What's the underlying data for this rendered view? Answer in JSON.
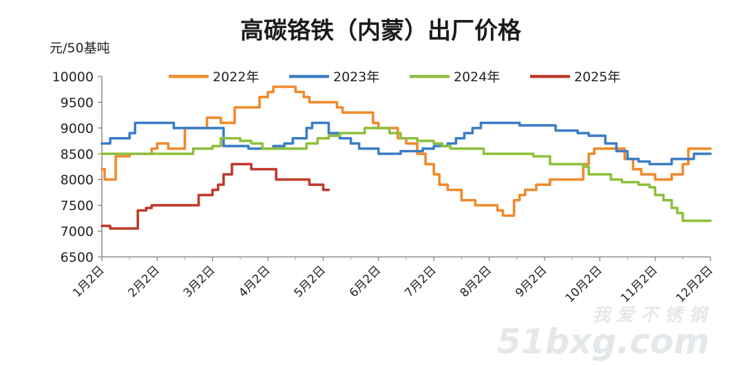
{
  "chart_data": {
    "type": "line",
    "title": "高碳铬铁（内蒙）出厂价格",
    "ylabel": "元/50基吨",
    "ylim": [
      6500,
      10000
    ],
    "yticks": [
      6500,
      7000,
      7500,
      8000,
      8500,
      9000,
      9500,
      10000
    ],
    "categories": [
      "1月2日",
      "2月2日",
      "3月2日",
      "4月2日",
      "5月2日",
      "6月2日",
      "7月2日",
      "8月2日",
      "9月2日",
      "10月2日",
      "11月2日",
      "12月2日"
    ],
    "legend_position": "top",
    "grid": false,
    "series": [
      {
        "name": "2022年",
        "color": "#f08a2b",
        "points": [
          [
            1,
            8200
          ],
          [
            1.1,
            8000
          ],
          [
            1.4,
            8000
          ],
          [
            1.5,
            8450
          ],
          [
            1.7,
            8450
          ],
          [
            2.0,
            8500
          ],
          [
            2.6,
            8500
          ],
          [
            2.8,
            8600
          ],
          [
            3.0,
            8700
          ],
          [
            3.3,
            8700
          ],
          [
            3.4,
            8600
          ],
          [
            3.8,
            8600
          ],
          [
            4.0,
            9000
          ],
          [
            4.2,
            9000
          ],
          [
            4.6,
            9000
          ],
          [
            4.8,
            9200
          ],
          [
            5.0,
            9200
          ],
          [
            5.3,
            9100
          ],
          [
            5.6,
            9100
          ],
          [
            5.8,
            9400
          ],
          [
            6.0,
            9400
          ],
          [
            6.5,
            9400
          ],
          [
            6.7,
            9600
          ],
          [
            7.0,
            9700
          ],
          [
            7.2,
            9800
          ],
          [
            7.8,
            9800
          ],
          [
            8.0,
            9700
          ],
          [
            8.3,
            9600
          ],
          [
            8.5,
            9500
          ],
          [
            9.0,
            9500
          ],
          [
            9.3,
            9500
          ],
          [
            9.5,
            9400
          ],
          [
            9.7,
            9300
          ],
          [
            10.2,
            9300
          ],
          [
            10.6,
            9300
          ],
          [
            10.8,
            9100
          ],
          [
            11.0,
            9000
          ],
          [
            11.5,
            9000
          ],
          [
            11.7,
            8800
          ],
          [
            12.0,
            8700
          ],
          [
            12.4,
            8500
          ],
          [
            12.7,
            8300
          ],
          [
            13.0,
            8100
          ],
          [
            13.2,
            7900
          ],
          [
            13.5,
            7800
          ],
          [
            13.8,
            7800
          ],
          [
            14.0,
            7600
          ],
          [
            14.3,
            7600
          ],
          [
            14.5,
            7500
          ],
          [
            15.0,
            7500
          ],
          [
            15.3,
            7400
          ],
          [
            15.5,
            7300
          ],
          [
            15.7,
            7300
          ],
          [
            15.9,
            7600
          ],
          [
            16.1,
            7700
          ],
          [
            16.3,
            7800
          ],
          [
            16.5,
            7800
          ],
          [
            16.7,
            7900
          ],
          [
            17.0,
            7900
          ],
          [
            17.2,
            8000
          ],
          [
            17.6,
            8000
          ],
          [
            18.2,
            8000
          ],
          [
            18.4,
            8300
          ],
          [
            18.6,
            8500
          ],
          [
            18.8,
            8600
          ],
          [
            19.2,
            8600
          ],
          [
            19.6,
            8600
          ],
          [
            19.9,
            8400
          ],
          [
            20.2,
            8200
          ],
          [
            20.5,
            8100
          ],
          [
            20.8,
            8100
          ],
          [
            21.0,
            8000
          ],
          [
            21.4,
            8000
          ],
          [
            21.6,
            8100
          ],
          [
            21.8,
            8100
          ],
          [
            22.0,
            8300
          ],
          [
            22.2,
            8600
          ],
          [
            22.6,
            8600
          ],
          [
            23.0,
            8600
          ]
        ]
      },
      {
        "name": "2023年",
        "color": "#3b7dc4",
        "points": [
          [
            1,
            8700
          ],
          [
            1.2,
            8700
          ],
          [
            1.3,
            8800
          ],
          [
            1.8,
            8800
          ],
          [
            2.0,
            8900
          ],
          [
            2.2,
            9100
          ],
          [
            2.6,
            9100
          ],
          [
            3.4,
            9100
          ],
          [
            3.6,
            9000
          ],
          [
            4.0,
            9000
          ],
          [
            4.5,
            9000
          ],
          [
            5.2,
            9000
          ],
          [
            5.4,
            8650
          ],
          [
            6.3,
            8600
          ],
          [
            6.8,
            8600
          ],
          [
            7.2,
            8650
          ],
          [
            7.6,
            8700
          ],
          [
            7.9,
            8800
          ],
          [
            8.2,
            8800
          ],
          [
            8.4,
            9000
          ],
          [
            8.6,
            9100
          ],
          [
            8.9,
            9100
          ],
          [
            9.2,
            8900
          ],
          [
            9.6,
            8800
          ],
          [
            10.0,
            8700
          ],
          [
            10.3,
            8600
          ],
          [
            10.8,
            8600
          ],
          [
            11.0,
            8500
          ],
          [
            11.6,
            8500
          ],
          [
            11.8,
            8550
          ],
          [
            12.4,
            8550
          ],
          [
            12.6,
            8600
          ],
          [
            13.0,
            8650
          ],
          [
            13.5,
            8700
          ],
          [
            13.8,
            8800
          ],
          [
            14.1,
            8900
          ],
          [
            14.4,
            9000
          ],
          [
            14.7,
            9100
          ],
          [
            15.2,
            9100
          ],
          [
            15.8,
            9100
          ],
          [
            16.1,
            9050
          ],
          [
            16.5,
            9050
          ],
          [
            17.0,
            9050
          ],
          [
            17.4,
            8950
          ],
          [
            17.8,
            8950
          ],
          [
            18.2,
            8900
          ],
          [
            18.6,
            8850
          ],
          [
            19.2,
            8700
          ],
          [
            19.6,
            8550
          ],
          [
            20.0,
            8400
          ],
          [
            20.4,
            8350
          ],
          [
            20.8,
            8300
          ],
          [
            21.4,
            8300
          ],
          [
            21.6,
            8400
          ],
          [
            22.0,
            8400
          ],
          [
            22.4,
            8500
          ],
          [
            23.0,
            8500
          ]
        ]
      },
      {
        "name": "2024年",
        "color": "#8dbf3c",
        "points": [
          [
            1,
            8500
          ],
          [
            2.5,
            8500
          ],
          [
            4.0,
            8500
          ],
          [
            4.3,
            8600
          ],
          [
            5.0,
            8650
          ],
          [
            5.3,
            8800
          ],
          [
            5.8,
            8800
          ],
          [
            6.0,
            8750
          ],
          [
            6.4,
            8700
          ],
          [
            6.8,
            8600
          ],
          [
            7.5,
            8600
          ],
          [
            8.4,
            8700
          ],
          [
            8.8,
            8800
          ],
          [
            9.2,
            8850
          ],
          [
            9.6,
            8900
          ],
          [
            10.3,
            8900
          ],
          [
            10.5,
            9000
          ],
          [
            11.0,
            9000
          ],
          [
            11.4,
            8900
          ],
          [
            11.8,
            8800
          ],
          [
            12.4,
            8750
          ],
          [
            13.0,
            8700
          ],
          [
            13.3,
            8650
          ],
          [
            13.6,
            8600
          ],
          [
            14.6,
            8600
          ],
          [
            14.8,
            8500
          ],
          [
            15.5,
            8500
          ],
          [
            16.4,
            8500
          ],
          [
            16.6,
            8450
          ],
          [
            17.0,
            8450
          ],
          [
            17.2,
            8300
          ],
          [
            17.6,
            8300
          ],
          [
            18.2,
            8300
          ],
          [
            18.4,
            8250
          ],
          [
            18.6,
            8100
          ],
          [
            19.0,
            8100
          ],
          [
            19.4,
            8000
          ],
          [
            19.8,
            7950
          ],
          [
            20.4,
            7900
          ],
          [
            20.8,
            7850
          ],
          [
            21.0,
            7700
          ],
          [
            21.3,
            7600
          ],
          [
            21.6,
            7450
          ],
          [
            21.8,
            7350
          ],
          [
            22.0,
            7200
          ],
          [
            22.5,
            7200
          ],
          [
            23.0,
            7200
          ]
        ]
      },
      {
        "name": "2025年",
        "color": "#c0392b",
        "points": [
          [
            1,
            7100
          ],
          [
            1.2,
            7100
          ],
          [
            1.3,
            7050
          ],
          [
            1.8,
            7050
          ],
          [
            2.0,
            7050
          ],
          [
            2.2,
            7050
          ],
          [
            2.3,
            7400
          ],
          [
            2.6,
            7450
          ],
          [
            2.8,
            7500
          ],
          [
            3.2,
            7500
          ],
          [
            3.6,
            7500
          ],
          [
            4.0,
            7500
          ],
          [
            4.3,
            7500
          ],
          [
            4.5,
            7700
          ],
          [
            4.9,
            7700
          ],
          [
            5.0,
            7800
          ],
          [
            5.2,
            7900
          ],
          [
            5.4,
            8100
          ],
          [
            5.7,
            8300
          ],
          [
            6.2,
            8300
          ],
          [
            6.4,
            8200
          ],
          [
            6.8,
            8200
          ],
          [
            7.1,
            8200
          ],
          [
            7.3,
            8000
          ],
          [
            7.8,
            8000
          ],
          [
            8.2,
            8000
          ],
          [
            8.5,
            7900
          ],
          [
            8.9,
            7900
          ],
          [
            9.0,
            7800
          ],
          [
            9.2,
            7800
          ]
        ]
      }
    ]
  },
  "watermark": {
    "line1": "我 爱 不 锈 钢",
    "line2": "51bxg.com"
  }
}
